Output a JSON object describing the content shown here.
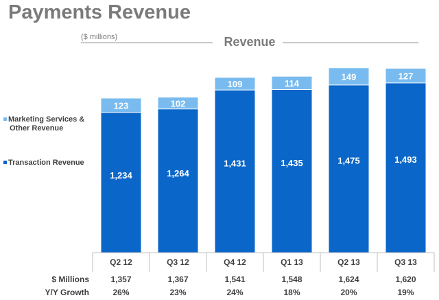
{
  "title": "Payments Revenue",
  "units_note": "($ millions)",
  "colors": {
    "transaction": "#0a66c8",
    "marketing": "#79bbef",
    "title_gray": "#7a7a7a",
    "text_dark": "#404040",
    "rule_gray": "#bfbfbf"
  },
  "chart_data": {
    "type": "bar",
    "stacked": true,
    "title": "Revenue",
    "categories": [
      "Q2 12",
      "Q3 12",
      "Q4 12",
      "Q1 13",
      "Q2 13",
      "Q3 13"
    ],
    "series": [
      {
        "name": "Transaction Revenue",
        "values": [
          1234,
          1264,
          1431,
          1435,
          1475,
          1493
        ]
      },
      {
        "name": "Marketing Services & Other Revenue",
        "values": [
          123,
          102,
          109,
          114,
          149,
          127
        ]
      }
    ],
    "value_labels": {
      "transaction": [
        "1,234",
        "1,264",
        "1,431",
        "1,435",
        "1,475",
        "1,493"
      ],
      "marketing": [
        "123",
        "102",
        "109",
        "114",
        "149",
        "127"
      ]
    },
    "ylim": [
      0,
      1650
    ],
    "grid": false,
    "legend_position": "left"
  },
  "legend": [
    {
      "line1": "Marketing Services &",
      "line2": "Other Revenue",
      "color_key": "marketing"
    },
    {
      "line1": "Transaction Revenue",
      "line2": "",
      "color_key": "transaction"
    }
  ],
  "table": {
    "rows": [
      {
        "label": "$ Millions",
        "values": [
          "1,357",
          "1,367",
          "1,541",
          "1,548",
          "1,624",
          "1,620"
        ]
      },
      {
        "label": "Y/Y Growth",
        "values": [
          "26%",
          "23%",
          "24%",
          "18%",
          "20%",
          "19%"
        ]
      }
    ]
  }
}
